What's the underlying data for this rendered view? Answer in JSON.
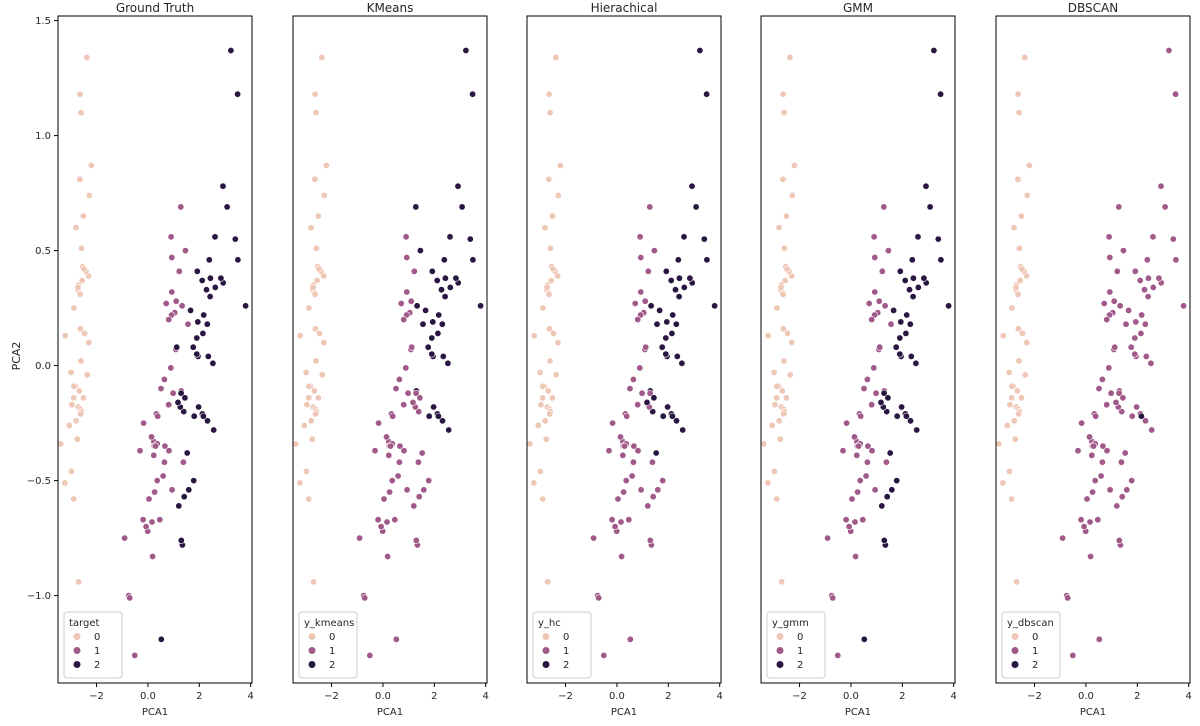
{
  "figure": {
    "ylabel": "PCA2",
    "class_colors": {
      "0": "#efc7b6",
      "1": "#a1598a",
      "2": "#2a1741"
    }
  },
  "chart_data": [
    {
      "type": "scatter",
      "title": "Ground Truth",
      "xlabel": "PCA1",
      "ylabel": "PCA2",
      "xlim": [
        -3.5,
        4.05
      ],
      "ylim": [
        -1.38,
        1.52
      ],
      "x_ticks": [
        -2,
        0,
        2,
        4
      ],
      "y_ticks": [
        -1.0,
        -0.5,
        0.0,
        0.5,
        1.0,
        1.5
      ],
      "legend": {
        "title": "target",
        "entries": [
          "0",
          "1",
          "2"
        ],
        "placement": "lower-left"
      },
      "points_key": "shared"
    },
    {
      "type": "scatter",
      "title": "KMeans",
      "xlabel": "PCA1",
      "ylabel": "",
      "xlim": [
        -3.5,
        4.05
      ],
      "ylim": [
        -1.38,
        1.52
      ],
      "x_ticks": [
        -2,
        0,
        2,
        4
      ],
      "legend": {
        "title": "y_kmeans",
        "entries": [
          "0",
          "1",
          "2"
        ],
        "placement": "lower-left"
      }
    },
    {
      "type": "scatter",
      "title": "Hierachical",
      "xlabel": "PCA1",
      "ylabel": "",
      "xlim": [
        -3.5,
        4.05
      ],
      "ylim": [
        -1.38,
        1.52
      ],
      "x_ticks": [
        -2,
        0,
        2,
        4
      ],
      "legend": {
        "title": "y_hc",
        "entries": [
          "0",
          "1",
          "2"
        ],
        "placement": "lower-left"
      }
    },
    {
      "type": "scatter",
      "title": "GMM",
      "xlabel": "PCA1",
      "ylabel": "",
      "xlim": [
        -3.5,
        4.05
      ],
      "ylim": [
        -1.38,
        1.52
      ],
      "x_ticks": [
        -2,
        0,
        2,
        4
      ],
      "legend": {
        "title": "y_gmm",
        "entries": [
          "0",
          "1",
          "2"
        ],
        "placement": "lower-left"
      }
    },
    {
      "type": "scatter",
      "title": "DBSCAN",
      "xlabel": "PCA1",
      "ylabel": "",
      "xlim": [
        -3.5,
        4.05
      ],
      "ylim": [
        -1.38,
        1.52
      ],
      "x_ticks": [
        -2,
        0,
        2,
        4
      ],
      "legend": {
        "title": "y_dbscan",
        "entries": [
          "0",
          "1",
          "2"
        ],
        "placement": "lower-left"
      }
    }
  ],
  "points": {
    "x": [
      -2.68,
      -2.71,
      -2.89,
      -2.75,
      -2.73,
      -2.28,
      -2.82,
      -2.63,
      -2.89,
      -2.67,
      -2.51,
      -2.61,
      -2.79,
      -3.23,
      -2.64,
      -2.38,
      -2.62,
      -2.65,
      -2.2,
      -2.59,
      -2.31,
      -2.54,
      -3.22,
      -2.3,
      -2.36,
      -2.51,
      -2.47,
      -2.56,
      -2.64,
      -2.63,
      -2.59,
      -2.41,
      -2.65,
      -2.6,
      -2.99,
      -2.88,
      -2.71,
      -2.8,
      -2.62,
      -2.7,
      -3.39,
      -3.06,
      -2.49,
      -2.72,
      -2.88,
      -2.96,
      -2.98,
      1.28,
      0.93,
      1.46,
      0.18,
      1.09,
      0.64,
      1.1,
      -0.75,
      1.04,
      -0.01,
      -0.51,
      0.51,
      0.26,
      0.98,
      -0.17,
      0.93,
      0.66,
      0.23,
      0.94,
      0.04,
      1.12,
      0.36,
      1.3,
      0.92,
      0.71,
      0.9,
      1.33,
      1.56,
      0.81,
      -0.31,
      -0.07,
      -0.19,
      0.14,
      1.38,
      0.59,
      0.81,
      1.22,
      0.82,
      0.25,
      0.16,
      0.46,
      0.89,
      0.23,
      -0.71,
      0.36,
      0.33,
      0.38,
      0.64,
      -0.91,
      0.3,
      2.53,
      1.41,
      2.62,
      1.97,
      2.35,
      3.4,
      0.52,
      2.93,
      2.32,
      2.92,
      1.66,
      1.8,
      2.17,
      1.34,
      1.59,
      1.9,
      1.95,
      3.49,
      3.8,
      1.3,
      2.43,
      1.2,
      3.5,
      1.39,
      2.28,
      2.61,
      1.26,
      1.29,
      2.12,
      2.39,
      2.84,
      3.23,
      2.16,
      1.44,
      1.78,
      3.08,
      2.14,
      1.9,
      1.17,
      2.11,
      2.31,
      1.92,
      2.56,
      2.42,
      1.94,
      1.53,
      1.76,
      1.9
    ],
    "y": [
      0.32,
      -0.18,
      -0.14,
      -0.32,
      0.33,
      0.74,
      -0.09,
      0.16,
      -0.58,
      -0.11,
      0.65,
      0.02,
      -0.24,
      -0.51,
      1.18,
      1.34,
      0.81,
      0.31,
      0.87,
      0.51,
      0.39,
      0.43,
      0.13,
      0.1,
      -0.04,
      -0.14,
      0.14,
      0.37,
      0.31,
      -0.19,
      -0.2,
      0.41,
      0.81,
      1.1,
      -0.03,
      -0.09,
      0.35,
      0.6,
      -0.21,
      -0.94,
      -0.34,
      -0.26,
      0.42,
      0.34,
      0.25,
      -0.17,
      -0.46,
      0.69,
      0.32,
      0.5,
      -0.83,
      0.07,
      -0.42,
      0.28,
      -1.0,
      0.23,
      -0.72,
      -1.26,
      -0.1,
      -0.55,
      -0.12,
      -0.25,
      0.47,
      -0.35,
      -0.33,
      -0.54,
      -0.58,
      0.08,
      -0.34,
      -0.11,
      0.22,
      0.27,
      0.56,
      0.26,
      0.18,
      -0.17,
      -0.37,
      -0.7,
      -0.67,
      -0.31,
      -0.42,
      -0.48,
      0.2,
      0.41,
      -0.37,
      -0.35,
      -0.68,
      -0.67,
      -0.01,
      -0.39,
      -1.01,
      -0.5,
      -0.21,
      -0.22,
      -0.06,
      -0.75,
      -0.35,
      0.01,
      -0.57,
      0.34,
      -0.18,
      0.04,
      0.55,
      -1.19,
      0.36,
      -0.24,
      0.78,
      0.24,
      -0.22,
      0.22,
      -0.78,
      -0.54,
      0.12,
      0.04,
      1.18,
      0.26,
      -0.76,
      0.38,
      -0.61,
      0.46,
      -0.2,
      0.33,
      0.56,
      -0.18,
      -0.12,
      -0.21,
      0.46,
      0.38,
      1.37,
      -0.22,
      -0.14,
      -0.5,
      0.69,
      0.14,
      0.05,
      -0.16,
      0.37,
      0.18,
      0.41,
      -0.28,
      0.3,
      0.19,
      -0.38,
      0.08,
      0.12
    ],
    "labels": {
      "Ground Truth": [
        0,
        0,
        0,
        0,
        0,
        0,
        0,
        0,
        0,
        0,
        0,
        0,
        0,
        0,
        0,
        0,
        0,
        0,
        0,
        0,
        0,
        0,
        0,
        0,
        0,
        0,
        0,
        0,
        0,
        0,
        0,
        0,
        0,
        0,
        0,
        0,
        0,
        0,
        0,
        0,
        0,
        0,
        0,
        0,
        0,
        0,
        0,
        1,
        1,
        1,
        1,
        1,
        1,
        1,
        1,
        1,
        1,
        1,
        1,
        1,
        1,
        1,
        1,
        1,
        1,
        1,
        1,
        2,
        1,
        1,
        1,
        1,
        1,
        1,
        1,
        1,
        1,
        1,
        1,
        1,
        1,
        1,
        1,
        1,
        1,
        1,
        1,
        1,
        1,
        1,
        1,
        1,
        1,
        1,
        1,
        1,
        1,
        2,
        2,
        2,
        2,
        2,
        2,
        2,
        2,
        2,
        2,
        2,
        2,
        2,
        2,
        2,
        2,
        2,
        2,
        2,
        2,
        2,
        2,
        2,
        2,
        2,
        2,
        2,
        2,
        2,
        2,
        2,
        2,
        2,
        2,
        2,
        2,
        2,
        2,
        2,
        2,
        2,
        2,
        2,
        2,
        2,
        2,
        2,
        2
      ],
      "KMeans": [
        0,
        0,
        0,
        0,
        0,
        0,
        0,
        0,
        0,
        0,
        0,
        0,
        0,
        0,
        0,
        0,
        0,
        0,
        0,
        0,
        0,
        0,
        0,
        0,
        0,
        0,
        0,
        0,
        0,
        0,
        0,
        0,
        0,
        0,
        0,
        0,
        0,
        0,
        0,
        0,
        0,
        0,
        0,
        0,
        0,
        0,
        0,
        2,
        1,
        2,
        1,
        1,
        1,
        1,
        1,
        1,
        1,
        1,
        1,
        1,
        1,
        1,
        1,
        1,
        1,
        1,
        1,
        1,
        1,
        2,
        1,
        1,
        1,
        2,
        2,
        1,
        1,
        1,
        1,
        1,
        1,
        1,
        1,
        1,
        1,
        1,
        1,
        1,
        1,
        1,
        1,
        1,
        1,
        1,
        1,
        1,
        1,
        2,
        1,
        2,
        2,
        2,
        2,
        1,
        2,
        2,
        2,
        2,
        2,
        2,
        1,
        1,
        2,
        2,
        2,
        2,
        1,
        2,
        1,
        2,
        1,
        2,
        2,
        1,
        1,
        2,
        2,
        2,
        2,
        2,
        1,
        1,
        2,
        2,
        2,
        1,
        2,
        2,
        2,
        2,
        2,
        2,
        1,
        2,
        2
      ],
      "Hierachical": [
        0,
        0,
        0,
        0,
        0,
        0,
        0,
        0,
        0,
        0,
        0,
        0,
        0,
        0,
        0,
        0,
        0,
        0,
        0,
        0,
        0,
        0,
        0,
        0,
        0,
        0,
        0,
        0,
        0,
        0,
        0,
        0,
        0,
        0,
        0,
        0,
        0,
        0,
        0,
        0,
        0,
        0,
        0,
        0,
        0,
        0,
        0,
        1,
        1,
        1,
        1,
        1,
        1,
        1,
        1,
        1,
        1,
        1,
        1,
        1,
        1,
        1,
        1,
        1,
        1,
        1,
        1,
        1,
        1,
        2,
        1,
        1,
        1,
        2,
        2,
        1,
        1,
        1,
        1,
        1,
        1,
        1,
        1,
        1,
        1,
        1,
        1,
        1,
        1,
        1,
        1,
        1,
        1,
        1,
        1,
        1,
        1,
        2,
        1,
        2,
        2,
        2,
        2,
        1,
        2,
        2,
        2,
        2,
        2,
        2,
        1,
        1,
        2,
        2,
        2,
        2,
        1,
        2,
        1,
        2,
        2,
        2,
        2,
        1,
        1,
        2,
        2,
        2,
        2,
        2,
        2,
        1,
        2,
        2,
        2,
        2,
        2,
        2,
        2,
        2,
        2,
        2,
        2,
        2,
        2
      ],
      "GMM": [
        0,
        0,
        0,
        0,
        0,
        0,
        0,
        0,
        0,
        0,
        0,
        0,
        0,
        0,
        0,
        0,
        0,
        0,
        0,
        0,
        0,
        0,
        0,
        0,
        0,
        0,
        0,
        0,
        0,
        0,
        0,
        0,
        0,
        0,
        0,
        0,
        0,
        0,
        0,
        0,
        0,
        0,
        0,
        0,
        0,
        0,
        0,
        1,
        1,
        1,
        1,
        1,
        1,
        1,
        1,
        1,
        1,
        1,
        1,
        1,
        1,
        1,
        1,
        1,
        1,
        1,
        1,
        1,
        1,
        1,
        1,
        1,
        1,
        1,
        1,
        1,
        1,
        1,
        1,
        1,
        1,
        1,
        1,
        1,
        1,
        1,
        1,
        1,
        1,
        1,
        1,
        1,
        1,
        1,
        1,
        1,
        1,
        2,
        2,
        2,
        2,
        2,
        2,
        2,
        2,
        2,
        2,
        2,
        2,
        2,
        2,
        2,
        2,
        2,
        2,
        2,
        2,
        2,
        2,
        2,
        2,
        2,
        2,
        2,
        2,
        2,
        2,
        2,
        2,
        2,
        2,
        2,
        2,
        2,
        2,
        2,
        2,
        2,
        2,
        2,
        2,
        2,
        2,
        2,
        2
      ],
      "DBSCAN": [
        0,
        0,
        0,
        0,
        0,
        0,
        0,
        0,
        0,
        0,
        0,
        0,
        0,
        0,
        0,
        0,
        0,
        0,
        0,
        0,
        0,
        0,
        0,
        0,
        0,
        0,
        0,
        0,
        0,
        0,
        0,
        0,
        0,
        0,
        0,
        0,
        0,
        0,
        0,
        0,
        0,
        0,
        0,
        0,
        0,
        0,
        0,
        1,
        1,
        1,
        1,
        1,
        1,
        1,
        1,
        1,
        1,
        1,
        1,
        1,
        1,
        1,
        1,
        1,
        1,
        1,
        1,
        1,
        1,
        1,
        1,
        1,
        1,
        1,
        1,
        1,
        1,
        1,
        1,
        1,
        1,
        1,
        1,
        1,
        1,
        1,
        1,
        1,
        1,
        1,
        1,
        1,
        1,
        1,
        1,
        1,
        1,
        1,
        1,
        1,
        1,
        1,
        1,
        1,
        1,
        1,
        1,
        1,
        1,
        1,
        1,
        1,
        1,
        1,
        1,
        1,
        1,
        1,
        1,
        1,
        1,
        1,
        1,
        1,
        1,
        1,
        1,
        1,
        1,
        2,
        1,
        1,
        1,
        1,
        1,
        1,
        1,
        1,
        1,
        1,
        1,
        1,
        1,
        1,
        1
      ]
    }
  }
}
